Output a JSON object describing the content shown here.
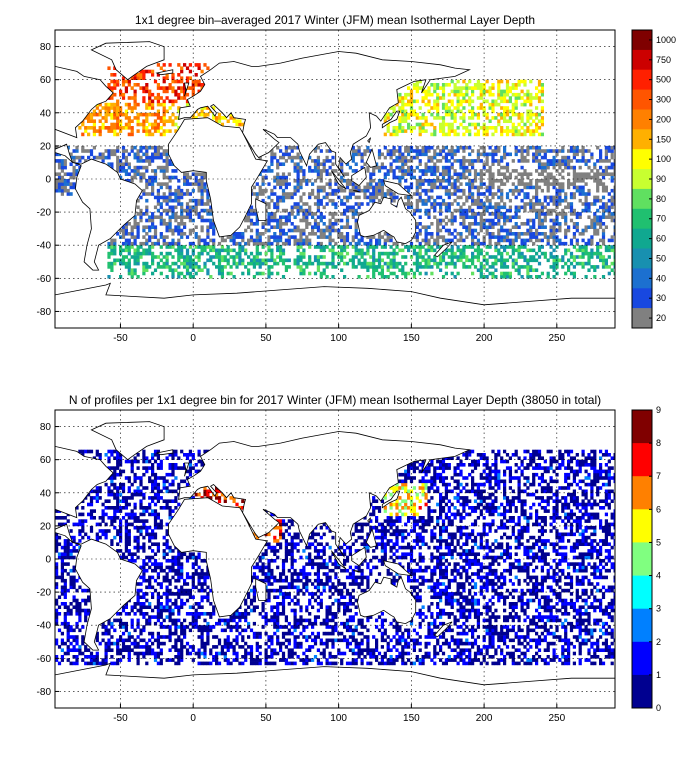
{
  "figure": {
    "panels": [
      {
        "id": "top",
        "title": "1x1 degree bin–averaged 2017 Winter (JFM) mean Isothermal Layer Depth",
        "xticks": [
          -50,
          0,
          50,
          100,
          150,
          200,
          250
        ],
        "yticks": [
          80,
          60,
          40,
          20,
          0,
          -20,
          -40,
          -60,
          -80
        ],
        "xlim": [
          -95,
          290
        ],
        "ylim": [
          -90,
          90
        ],
        "colorbar": {
          "labels": [
            "1000",
            "750",
            "500",
            "300",
            "200",
            "150",
            "100",
            "90",
            "80",
            "70",
            "60",
            "50",
            "40",
            "30",
            "20"
          ],
          "colors": [
            "#7f0000",
            "#cc0000",
            "#ff2000",
            "#ff5500",
            "#ff8000",
            "#ffb000",
            "#ffff00",
            "#c8ff30",
            "#60e060",
            "#20c070",
            "#10a890",
            "#1890b0",
            "#1c70d0",
            "#1848e0",
            "#808080"
          ]
        }
      },
      {
        "id": "bottom",
        "title": "N of profiles per 1x1 degree bin for 2017 Winter (JFM) mean Isothermal Layer Depth  (38050 in total)",
        "xticks": [
          -50,
          0,
          50,
          100,
          150,
          200,
          250
        ],
        "yticks": [
          80,
          60,
          40,
          20,
          0,
          -20,
          -40,
          -60,
          -80
        ],
        "xlim": [
          -95,
          290
        ],
        "ylim": [
          -90,
          90
        ],
        "colorbar": {
          "labels": [
            "9",
            "8",
            "7",
            "6",
            "5",
            "4",
            "3",
            "2",
            "1",
            "0"
          ],
          "colors": [
            "#800000",
            "#ff0000",
            "#ff8000",
            "#ffff00",
            "#80ff80",
            "#00ffff",
            "#0080ff",
            "#0000ff",
            "#000090"
          ]
        }
      }
    ]
  },
  "chart_data": [
    {
      "type": "heatmap",
      "title": "1x1 degree bin–averaged 2017 Winter (JFM) mean Isothermal Layer Depth",
      "xlabel": "",
      "ylabel": "",
      "xlim": [
        -95,
        290
      ],
      "ylim": [
        -90,
        90
      ],
      "grid": true,
      "colorbar_levels": [
        20,
        30,
        40,
        50,
        60,
        70,
        80,
        90,
        100,
        150,
        200,
        300,
        500,
        750,
        1000
      ],
      "regions": [
        {
          "lon": [
            -60,
            10
          ],
          "lat": [
            45,
            70
          ],
          "value": 500
        },
        {
          "lon": [
            -80,
            0
          ],
          "lat": [
            25,
            45
          ],
          "value": 200
        },
        {
          "lon": [
            -20,
            40
          ],
          "lat": [
            30,
            45
          ],
          "value": 150
        },
        {
          "lon": [
            130,
            240
          ],
          "lat": [
            25,
            60
          ],
          "value": 120
        },
        {
          "lon": [
            -95,
            290
          ],
          "lat": [
            -10,
            20
          ],
          "value": 35
        },
        {
          "lon": [
            -60,
            290
          ],
          "lat": [
            -40,
            -10
          ],
          "value": 30
        },
        {
          "lon": [
            -60,
            290
          ],
          "lat": [
            -60,
            -40
          ],
          "value": 70
        },
        {
          "lon": [
            200,
            280
          ],
          "lat": [
            -5,
            5
          ],
          "value": 20
        }
      ]
    },
    {
      "type": "heatmap",
      "title": "N of profiles per 1x1 degree bin for 2017 Winter (JFM) mean Isothermal Layer Depth  (38050 in total)",
      "xlabel": "",
      "ylabel": "",
      "xlim": [
        -95,
        290
      ],
      "ylim": [
        -90,
        90
      ],
      "grid": true,
      "colorbar_range": [
        0,
        9
      ],
      "total_profiles": 38050,
      "regions": [
        {
          "lon": [
            -95,
            290
          ],
          "lat": [
            -65,
            65
          ],
          "value": 1
        },
        {
          "lon": [
            0,
            40
          ],
          "lat": [
            30,
            45
          ],
          "value": 8
        },
        {
          "lon": [
            130,
            160
          ],
          "lat": [
            25,
            45
          ],
          "value": 6
        },
        {
          "lon": [
            30,
            60
          ],
          "lat": [
            10,
            25
          ],
          "value": 8
        }
      ]
    }
  ]
}
